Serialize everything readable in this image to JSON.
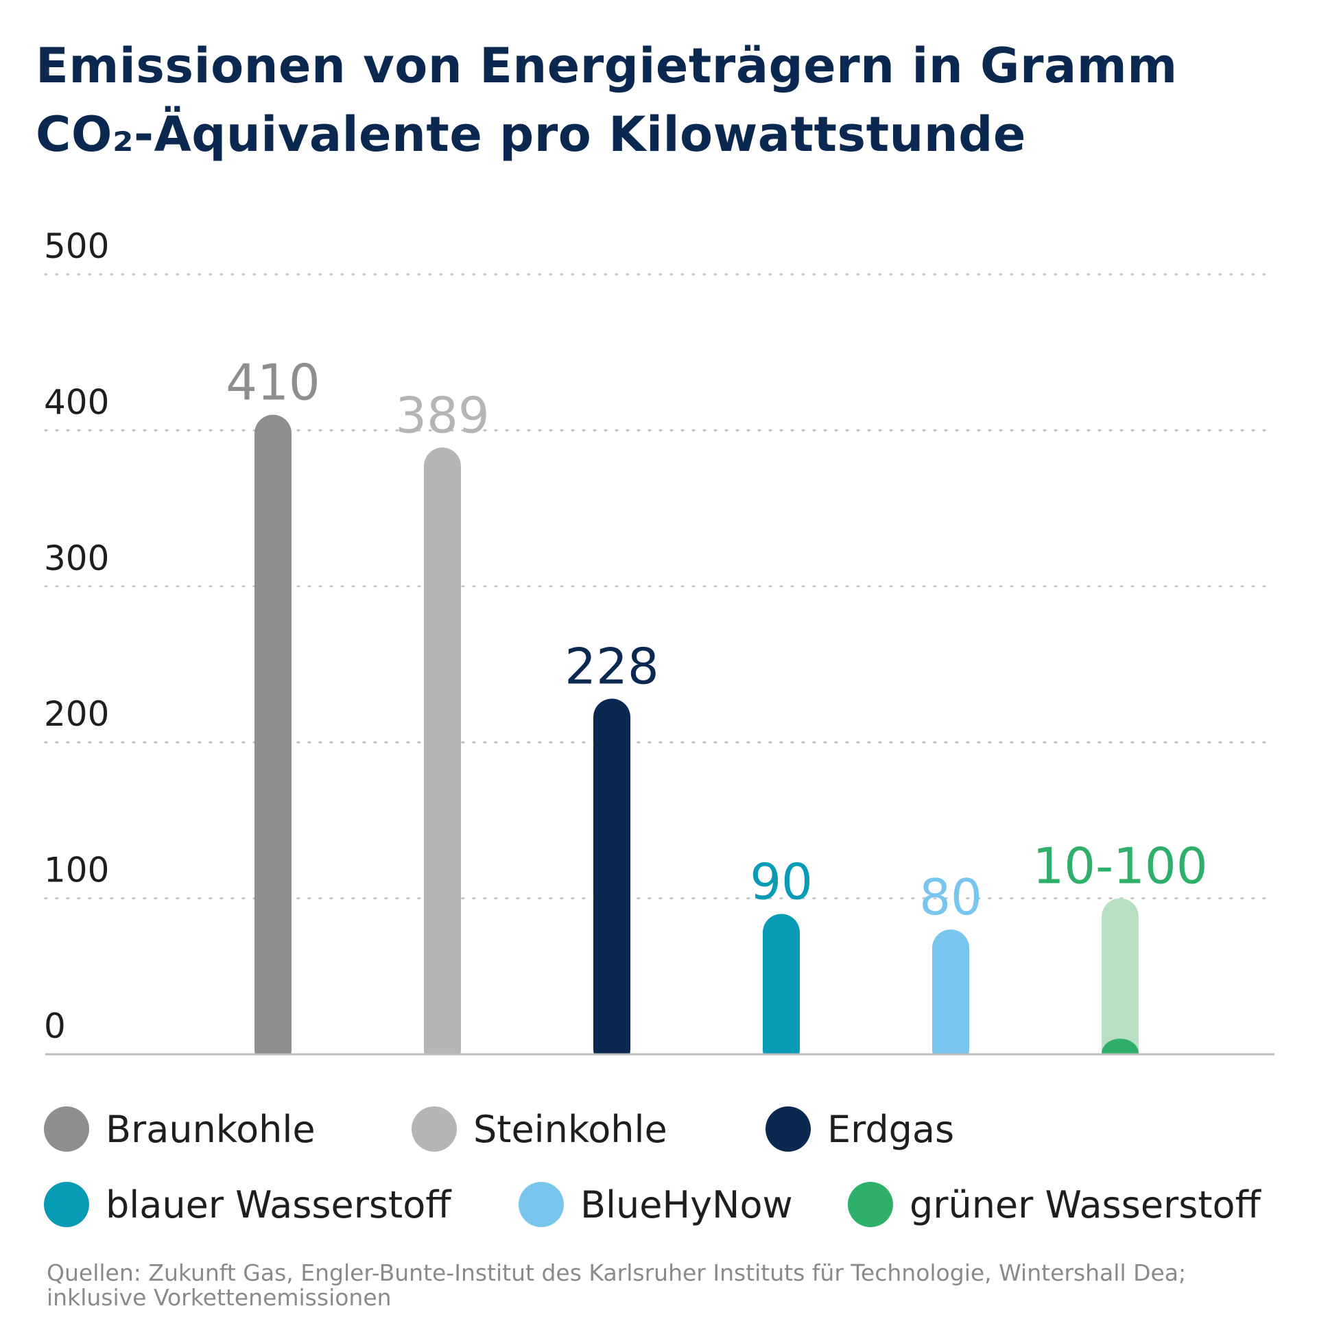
{
  "title_lines": [
    "Emissionen von Energieträgern in Gramm",
    "CO₂-Äquivalente pro Kilowattstunde"
  ],
  "source_lines": [
    "Quellen: Zukunft Gas, Engler-Bunte-Institut des Karlsruher Instituts für Technologie, Wintershall Dea;",
    "inklusive Vorkettenemissionen"
  ],
  "chart_data": {
    "type": "bar",
    "title": "Emissionen von Energieträgern in Gramm CO₂-Äquivalente pro Kilowattstunde",
    "categories": [
      "Braunkohle",
      "Steinkohle",
      "Erdgas",
      "blauer Wasserstoff",
      "BlueHyNow",
      "grüner Wasserstoff"
    ],
    "values": [
      410,
      389,
      228,
      90,
      80,
      100
    ],
    "range_min": [
      null,
      null,
      null,
      null,
      null,
      10
    ],
    "data_labels": [
      "410",
      "389",
      "228",
      "90",
      "80",
      "10-100"
    ],
    "colors": [
      "#8e8e8e",
      "#b5b5b5",
      "#0b2850",
      "#079bb5",
      "#78c5ee",
      "#2eaf6a"
    ],
    "range_color": "#b9dfc2",
    "label_colors": [
      "#8e8e8e",
      "#b5b5b5",
      "#0b2850",
      "#079bb5",
      "#78c5ee",
      "#2eaf6a"
    ],
    "yticks": [
      0,
      100,
      200,
      300,
      400,
      500
    ],
    "ylim": [
      0,
      500
    ],
    "grid": true,
    "grid_style": "dotted",
    "legend_position": "bottom",
    "xlabel": "",
    "ylabel": ""
  }
}
